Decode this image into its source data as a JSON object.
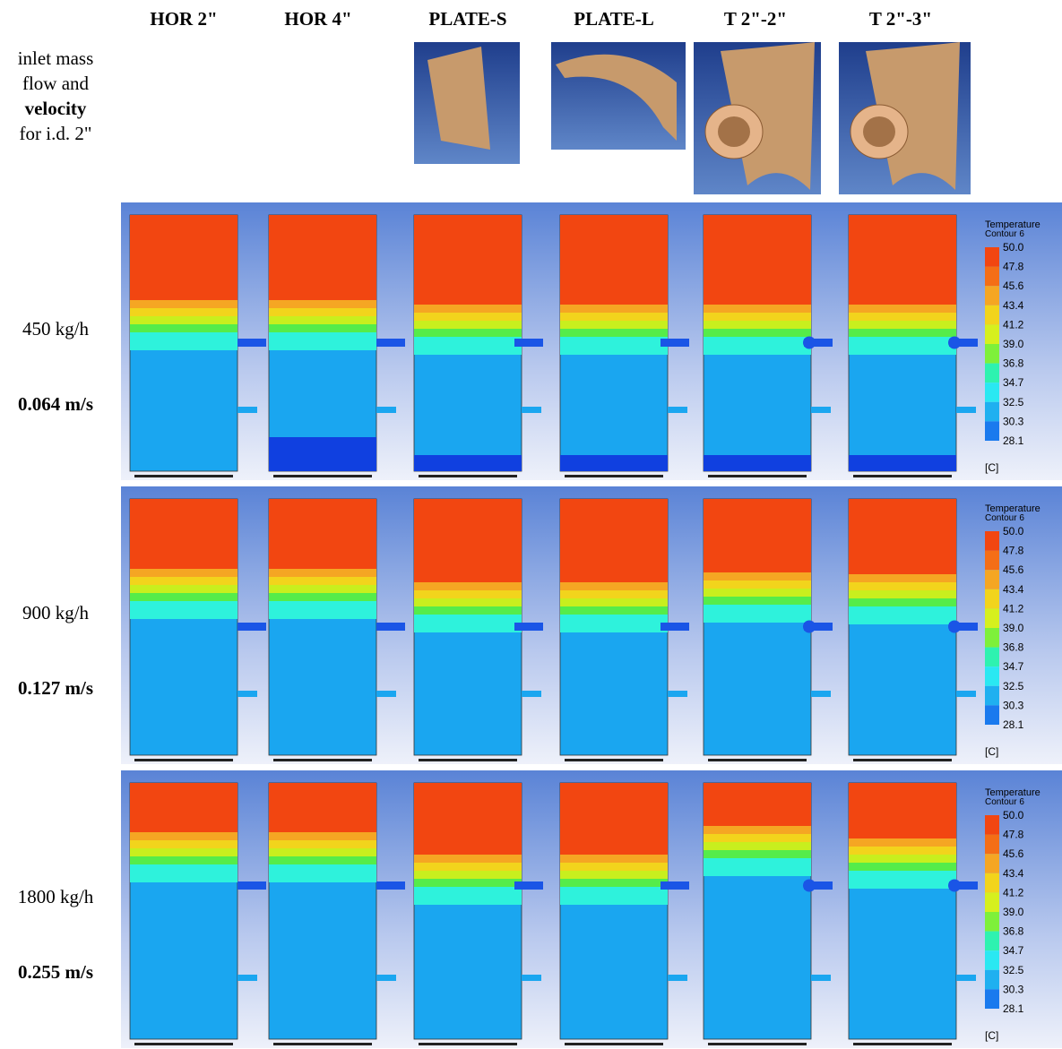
{
  "corner_label": {
    "line1": "inlet mass",
    "line2": "flow and",
    "line3": "velocity",
    "line4": "for i.d. 2\""
  },
  "columns": [
    "HOR 2\"",
    "HOR 4\"",
    "PLATE-S",
    "PLATE-L",
    "T 2\"-2\"",
    "T 2\"-3\""
  ],
  "rows": [
    {
      "flow": "450 kg/h",
      "velocity": "0.064 m/s"
    },
    {
      "flow": "900 kg/h",
      "velocity": "0.127 m/s"
    },
    {
      "flow": "1800 kg/h",
      "velocity": "0.255 m/s"
    }
  ],
  "legend": {
    "title": "Temperature",
    "subtitle": "Contour 6",
    "values": [
      "50.0",
      "47.8",
      "45.6",
      "43.4",
      "41.2",
      "39.0",
      "36.8",
      "34.7",
      "32.5",
      "30.3",
      "28.1"
    ],
    "unit": "[C]"
  }
}
